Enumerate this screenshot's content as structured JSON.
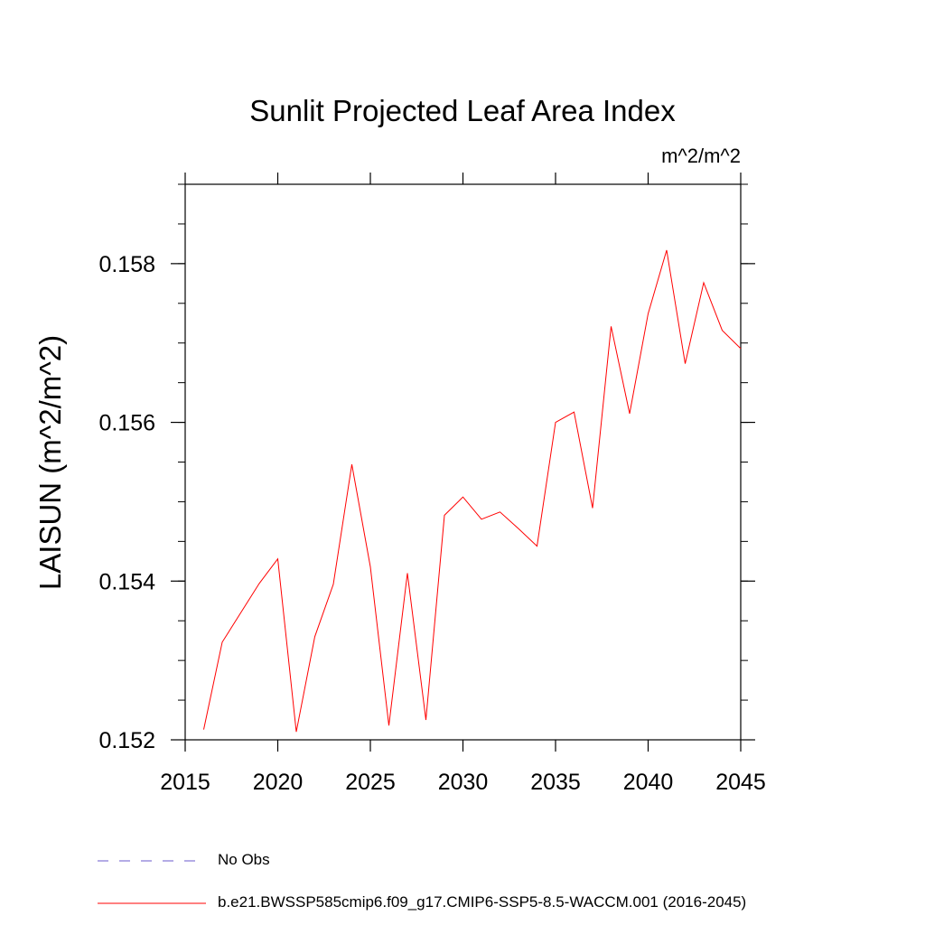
{
  "chart_data": {
    "type": "line",
    "title": "Sunlit Projected Leaf Area Index",
    "units_label": "m^2/m^2",
    "ylabel": "LAISUN  (m^2/m^2)",
    "xlabel": "",
    "xlim": [
      2015,
      2045
    ],
    "ylim": [
      0.152,
      0.159
    ],
    "x_ticks": [
      2015,
      2020,
      2025,
      2030,
      2035,
      2040,
      2045
    ],
    "x_tick_labels": [
      "2015",
      "2020",
      "2025",
      "2030",
      "2035",
      "2040",
      "2045"
    ],
    "y_ticks": [
      0.152,
      0.154,
      0.156,
      0.158
    ],
    "y_tick_labels": [
      "0.152",
      "0.154",
      "0.156",
      "0.158"
    ],
    "series": [
      {
        "name": "b.e21.BWSSP585cmip6.f09_g17.CMIP6-SSP5-8.5-WACCM.001 (2016-2045)",
        "color": "#ff0000",
        "x": [
          2016,
          2017,
          2018,
          2019,
          2020,
          2021,
          2022,
          2023,
          2024,
          2025,
          2026,
          2027,
          2028,
          2029,
          2030,
          2031,
          2032,
          2033,
          2034,
          2035,
          2036,
          2037,
          2038,
          2039,
          2040,
          2041,
          2042,
          2043,
          2044,
          2045
        ],
        "values": [
          0.15213,
          0.15323,
          0.1536,
          0.15397,
          0.15428,
          0.1521,
          0.1533,
          0.15396,
          0.15547,
          0.15418,
          0.15218,
          0.1541,
          0.15225,
          0.15483,
          0.15506,
          0.15478,
          0.15487,
          0.15466,
          0.15444,
          0.156,
          0.15613,
          0.15492,
          0.15721,
          0.15611,
          0.15737,
          0.15817,
          0.15674,
          0.15776,
          0.15716,
          0.15693
        ]
      }
    ],
    "legend": [
      {
        "label": "No Obs",
        "color": "#6a5acd",
        "style": "dashed"
      },
      {
        "label": "b.e21.BWSSP585cmip6.f09_g17.CMIP6-SSP5-8.5-WACCM.001 (2016-2045)",
        "color": "#ff0000",
        "style": "solid"
      }
    ],
    "legend_position": "bottom-left"
  }
}
